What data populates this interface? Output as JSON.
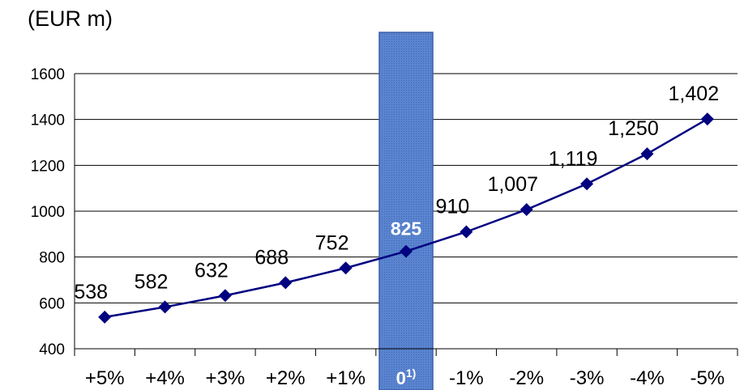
{
  "unit_label": "(EUR m)",
  "chart_data": {
    "type": "line",
    "categories": [
      "+5%",
      "+4%",
      "+3%",
      "+2%",
      "+1%",
      "0",
      "-1%",
      "-2%",
      "-3%",
      "-4%",
      "-5%"
    ],
    "highlight_category_superscript": "1)",
    "highlight_index": 5,
    "series": [
      {
        "values": [
          538,
          582,
          632,
          688,
          752,
          825,
          910,
          1007,
          1119,
          1250,
          1402
        ]
      }
    ],
    "data_labels": [
      "538",
      "582",
      "632",
      "688",
      "752",
      "825",
      "910",
      "1,007",
      "1,119",
      "1,250",
      "1,402"
    ],
    "ylim": [
      400,
      1600
    ],
    "yticks": [
      400,
      600,
      800,
      1000,
      1200,
      1400,
      1600
    ],
    "grid": true,
    "colors": {
      "line": "#000080",
      "marker": "#000080",
      "highlight": "#4f7ac7"
    }
  }
}
